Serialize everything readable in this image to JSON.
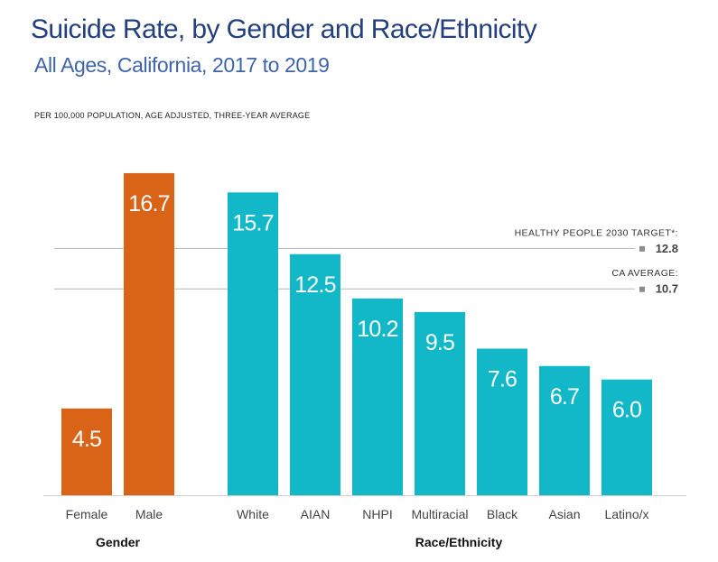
{
  "header": {
    "title": "Suicide Rate, by Gender and Race/Ethnicity",
    "subtitle": "All Ages, California, 2017 to 2019",
    "unit_note": "PER 100,000 POPULATION, AGE ADJUSTED, THREE-YEAR AVERAGE"
  },
  "colors": {
    "gender": "#d96418",
    "race": "#12b8c7",
    "reference_line": "#b5b5b5",
    "marker": "#8c8c8c"
  },
  "chart_data": {
    "type": "bar",
    "ylim": [
      0,
      18
    ],
    "grid": false,
    "groups": [
      {
        "name": "Gender",
        "color": "#d96418",
        "categories": [
          "Female",
          "Male"
        ],
        "values": [
          4.5,
          16.7
        ],
        "labels": [
          "4.5",
          "16.7"
        ]
      },
      {
        "name": "Race/Ethnicity",
        "color": "#12b8c7",
        "categories": [
          "White",
          "AIAN",
          "NHPI",
          "Multiracial",
          "Black",
          "Asian",
          "Latino/x"
        ],
        "values": [
          15.7,
          12.5,
          10.2,
          9.5,
          7.6,
          6.7,
          6.0
        ],
        "labels": [
          "15.7",
          "12.5",
          "10.2",
          "9.5",
          "7.6",
          "6.7",
          "6.0"
        ]
      }
    ],
    "reference_lines": [
      {
        "label": "HEALTHY PEOPLE 2030 TARGET*:",
        "value": 12.8,
        "value_label": "12.8"
      },
      {
        "label": "CA AVERAGE:",
        "value": 10.7,
        "value_label": "10.7"
      }
    ]
  }
}
